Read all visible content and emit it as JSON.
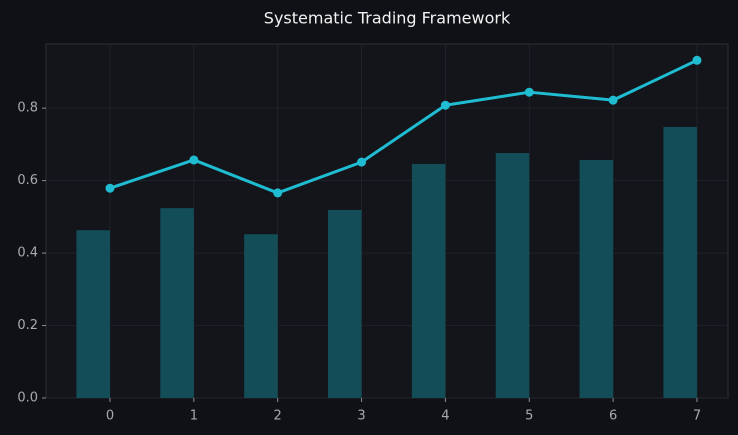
{
  "chart_data": {
    "type": "bar",
    "title": "Systematic Trading Framework",
    "x": [
      0,
      1,
      2,
      3,
      4,
      5,
      6,
      7
    ],
    "series": [
      {
        "type": "bar",
        "color": "#134d57",
        "values": [
          0.463,
          0.524,
          0.452,
          0.519,
          0.646,
          0.676,
          0.657,
          0.748
        ]
      },
      {
        "type": "line",
        "color": "#1fbcd2",
        "values": [
          0.579,
          0.657,
          0.566,
          0.651,
          0.808,
          0.844,
          0.822,
          0.932
        ]
      }
    ],
    "xlim": [
      -0.763,
      7.37
    ],
    "xticks": [
      0,
      1,
      2,
      3,
      4,
      5,
      6,
      7
    ],
    "ylim": [
      0,
      0.977
    ],
    "yticks": [
      {
        "value": 0,
        "label": "0.0"
      },
      0.2,
      0.4,
      0.6,
      0.8
    ],
    "grid": true
  }
}
